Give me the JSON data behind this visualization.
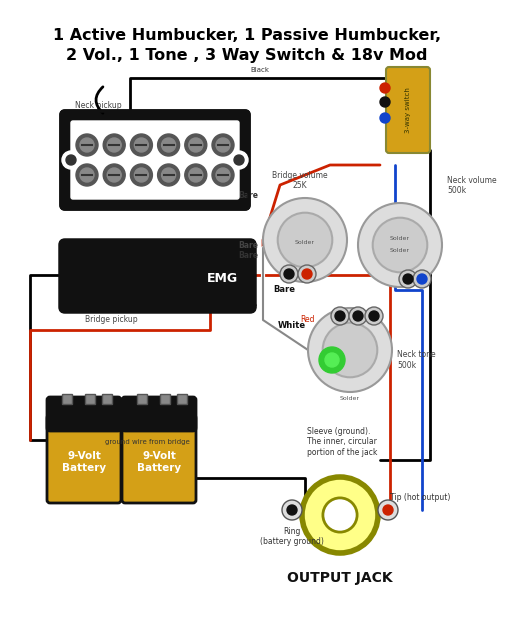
{
  "title_line1": "1 Active Humbucker, 1 Passive Humbucker,",
  "title_line2": "2 Vol., 1 Tone , 3 Way Switch & 18v Mod",
  "bg_color": "#ffffff",
  "title_color": "#000000",
  "title_fontsize": 11.5,
  "fig_width": 4.74,
  "fig_height": 5.99,
  "neck_pickup_label": "Neck pickup",
  "bridge_pickup_label": "Bridge pickup",
  "emg_label": "EMG",
  "battery_label": "9-Volt\nBattery",
  "output_jack_label": "OUTPUT JACK",
  "bridge_vol_label": "Bridge volume\n25K",
  "neck_vol_label": "Neck volume\n500k",
  "neck_tone_label": "Neck tone\n500k",
  "switch_label": "3-way switch",
  "bare_label": "Bare",
  "bare2_label": "Bare",
  "white_label": "White",
  "black_label": "Black",
  "red_label": "Red",
  "ground_label": "ground wire from bridge",
  "solder_label": "Solder",
  "sleeve_label": "Sleeve (ground).\nThe inner, circular\nportion of the jack",
  "ring_label": "Ring\n(battery ground)",
  "tip_label": "Tip (hot output)"
}
